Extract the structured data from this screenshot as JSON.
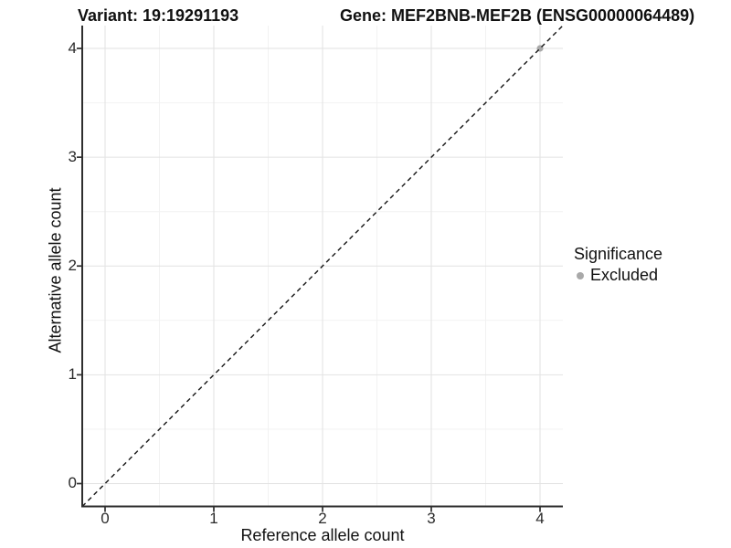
{
  "header": {
    "variant_title": "Variant: 19:19291193",
    "gene_title": "Gene: MEF2BNB-MEF2B (ENSG00000064489)"
  },
  "chart_data": {
    "type": "scatter",
    "title": "Variant: 19:19291193 — Gene: MEF2BNB-MEF2B (ENSG00000064489)",
    "xlabel": "Reference allele count",
    "ylabel": "Alternative allele count",
    "xlim": [
      -0.21,
      4.21
    ],
    "ylim": [
      -0.21,
      4.21
    ],
    "x_ticks": [
      0,
      1,
      2,
      3,
      4
    ],
    "y_ticks": [
      0,
      1,
      2,
      3,
      4
    ],
    "x_tick_labels": [
      "0",
      "1",
      "2",
      "3",
      "4"
    ],
    "y_tick_labels": [
      "0",
      "1",
      "2",
      "3",
      "4"
    ],
    "grid": {
      "major": true,
      "minor": true,
      "major_color": "#e2e2e2",
      "minor_color": "#f2f2f2"
    },
    "axis_color": "#2e2e2e",
    "identity_line": {
      "equation": "y = x",
      "style": "dashed",
      "color": "#141414"
    },
    "series": [
      {
        "name": "Excluded",
        "color": "#a9a9a9",
        "points": [
          {
            "x": 4,
            "y": 4
          }
        ]
      }
    ],
    "legend": {
      "title": "Significance",
      "position": "right",
      "entries": [
        {
          "label": "Excluded",
          "color": "#a9a9a9"
        }
      ]
    }
  }
}
